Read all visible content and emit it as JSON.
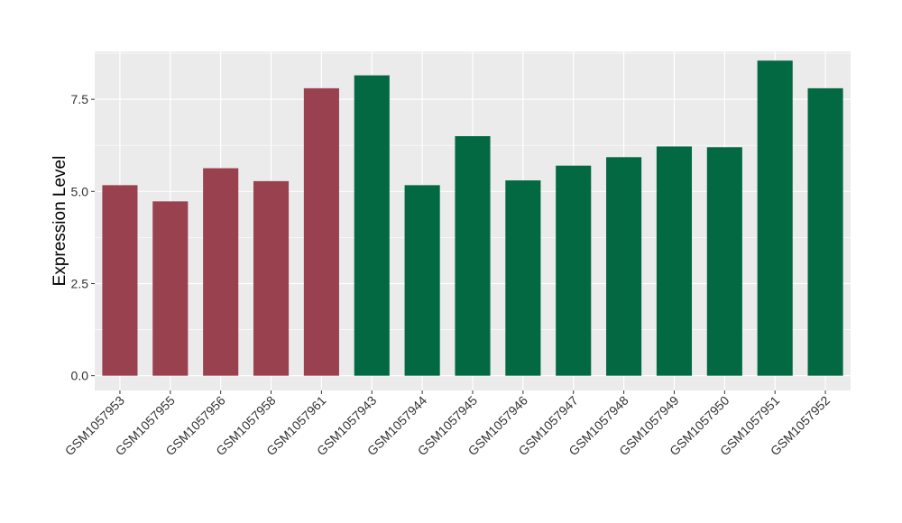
{
  "chart_data": {
    "type": "bar",
    "ylabel": "Expression Level",
    "xlabel": "",
    "ylim": [
      -0.4,
      8.8
    ],
    "yticks": [
      0.0,
      2.5,
      5.0,
      7.5
    ],
    "ytick_labels": [
      "0.0",
      "2.5",
      "5.0",
      "7.5"
    ],
    "grid": true,
    "colors": {
      "group1": "#9a4150",
      "group2": "#036943",
      "panel": "#ebebeb",
      "grid": "#ffffff"
    },
    "categories": [
      "GSM1057953",
      "GSM1057955",
      "GSM1057956",
      "GSM1057958",
      "GSM1057961",
      "GSM1057943",
      "GSM1057944",
      "GSM1057945",
      "GSM1057946",
      "GSM1057947",
      "GSM1057948",
      "GSM1057949",
      "GSM1057950",
      "GSM1057951",
      "GSM1057952"
    ],
    "values": [
      5.17,
      4.73,
      5.63,
      5.28,
      7.8,
      8.15,
      5.17,
      6.5,
      5.3,
      5.7,
      5.93,
      6.22,
      6.2,
      8.55,
      7.8
    ],
    "bar_groups": [
      "group1",
      "group1",
      "group1",
      "group1",
      "group1",
      "group2",
      "group2",
      "group2",
      "group2",
      "group2",
      "group2",
      "group2",
      "group2",
      "group2",
      "group2"
    ]
  }
}
